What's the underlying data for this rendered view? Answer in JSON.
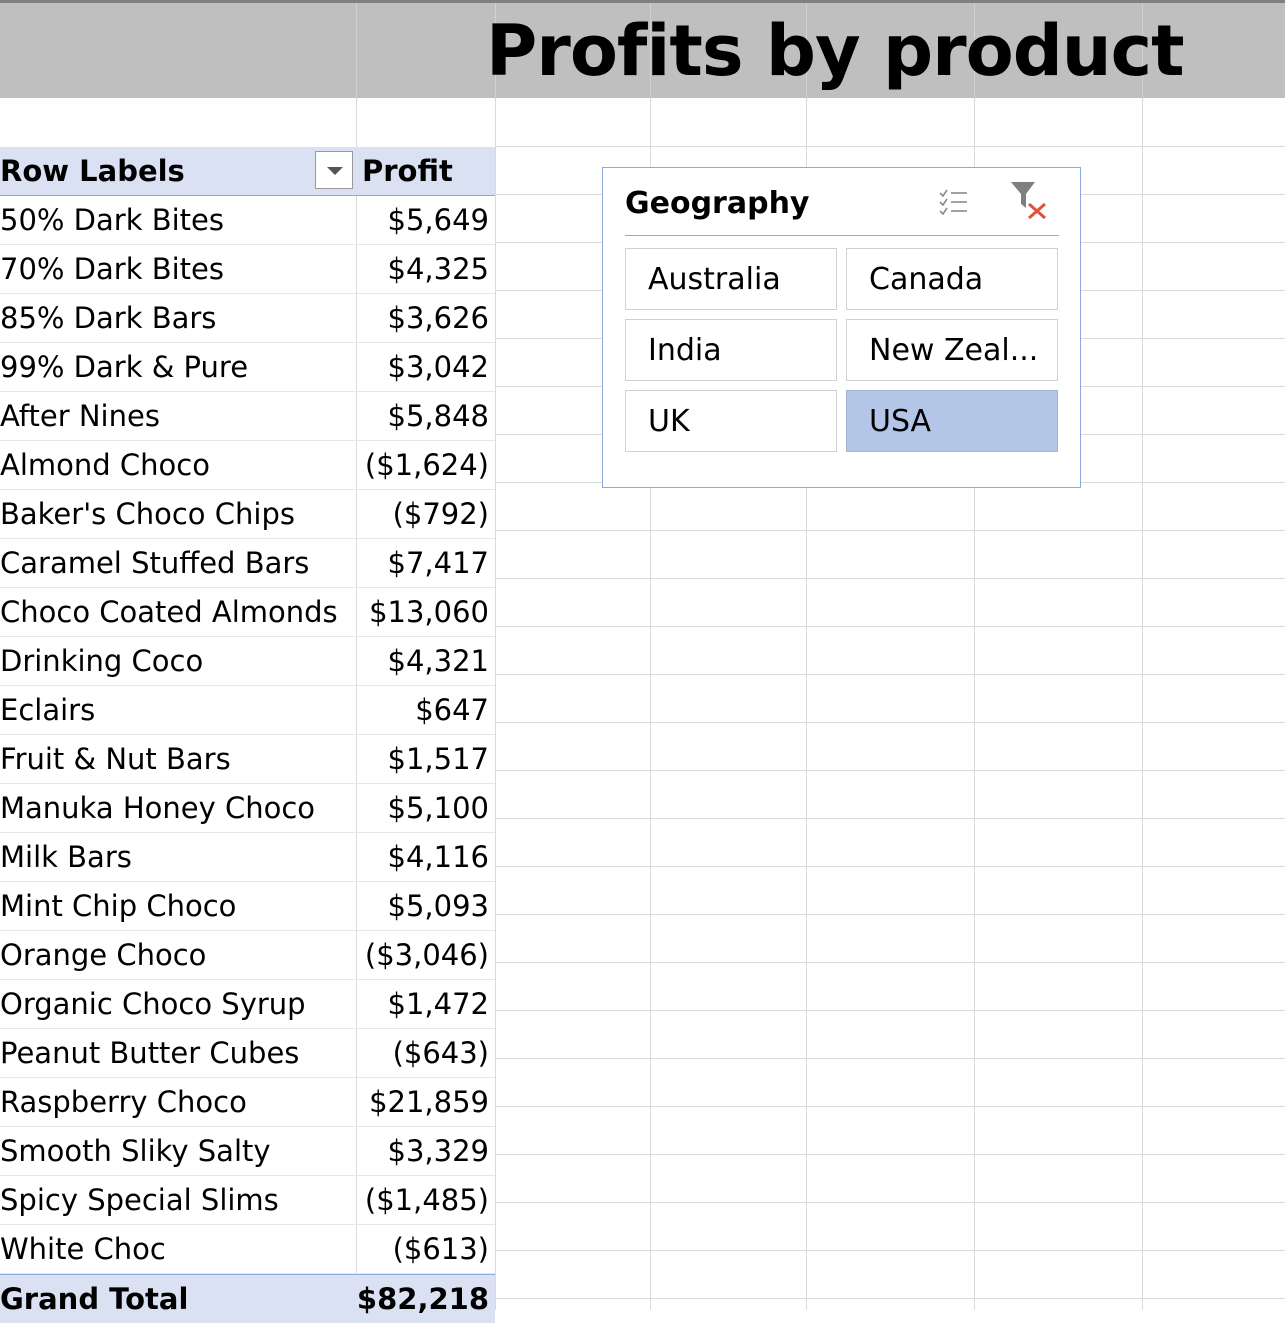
{
  "title": "Profits by product",
  "pivot": {
    "header": {
      "label": "Row Labels",
      "value": "Profit"
    },
    "rows": [
      {
        "label": "50% Dark Bites",
        "value": "$5,649"
      },
      {
        "label": "70% Dark Bites",
        "value": "$4,325"
      },
      {
        "label": "85% Dark Bars",
        "value": "$3,626"
      },
      {
        "label": "99% Dark & Pure",
        "value": "$3,042"
      },
      {
        "label": "After Nines",
        "value": "$5,848"
      },
      {
        "label": "Almond Choco",
        "value": "($1,624)"
      },
      {
        "label": "Baker's Choco Chips",
        "value": "($792)"
      },
      {
        "label": "Caramel Stuffed Bars",
        "value": "$7,417"
      },
      {
        "label": "Choco Coated Almonds",
        "value": "$13,060"
      },
      {
        "label": "Drinking Coco",
        "value": "$4,321"
      },
      {
        "label": "Eclairs",
        "value": "$647"
      },
      {
        "label": "Fruit & Nut Bars",
        "value": "$1,517"
      },
      {
        "label": "Manuka Honey Choco",
        "value": "$5,100"
      },
      {
        "label": "Milk Bars",
        "value": "$4,116"
      },
      {
        "label": "Mint Chip Choco",
        "value": "$5,093"
      },
      {
        "label": "Orange Choco",
        "value": "($3,046)"
      },
      {
        "label": "Organic Choco Syrup",
        "value": "$1,472"
      },
      {
        "label": "Peanut Butter Cubes",
        "value": "($643)"
      },
      {
        "label": "Raspberry Choco",
        "value": "$21,859"
      },
      {
        "label": "Smooth Sliky Salty",
        "value": "$3,329"
      },
      {
        "label": "Spicy Special Slims",
        "value": "($1,485)"
      },
      {
        "label": "White Choc",
        "value": "($613)"
      }
    ],
    "total": {
      "label": "Grand Total",
      "value": "$82,218"
    }
  },
  "slicer": {
    "title": "Geography",
    "multiselect_icon": "multi-select-icon",
    "clear_filter_icon": "clear-filter-icon",
    "items": [
      {
        "label": "Australia",
        "selected": false
      },
      {
        "label": "Canada",
        "selected": false
      },
      {
        "label": "India",
        "selected": false
      },
      {
        "label": "New Zeal...",
        "selected": false
      },
      {
        "label": "UK",
        "selected": false
      },
      {
        "label": "USA",
        "selected": true
      }
    ],
    "selected_color": "#b4c6e7"
  },
  "colors": {
    "title_band": "#bfbfbf",
    "pivot_header": "#d9e1f2",
    "clear_filter_x": "#e0533a"
  }
}
